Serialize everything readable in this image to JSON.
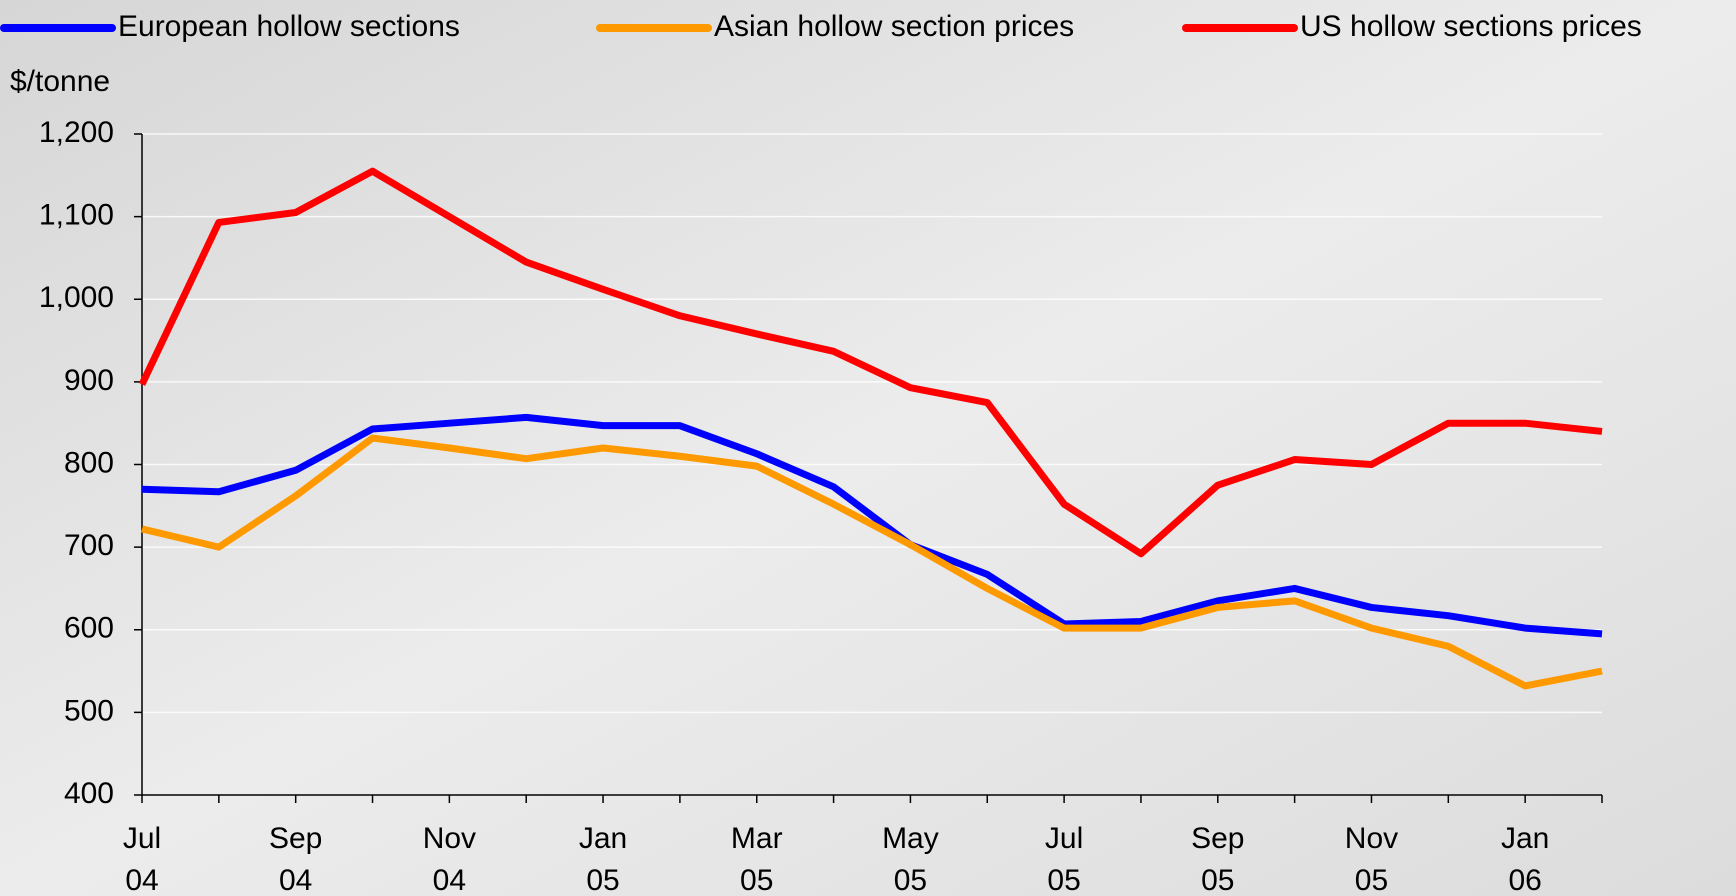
{
  "chart_data": {
    "type": "line",
    "y_label": "$/tonne",
    "categories": [
      [
        "Jul",
        "04"
      ],
      null,
      [
        "Sep",
        "04"
      ],
      null,
      [
        "Nov",
        "04"
      ],
      null,
      [
        "Jan",
        "05"
      ],
      null,
      [
        "Mar",
        "05"
      ],
      null,
      [
        "May",
        "05"
      ],
      null,
      [
        "Jul",
        "05"
      ],
      null,
      [
        "Sep",
        "05"
      ],
      null,
      [
        "Nov",
        "05"
      ],
      null,
      [
        "Jan",
        "06"
      ],
      null
    ],
    "series": [
      {
        "name": "European hollow sections",
        "color": "#0000ff",
        "values": [
          770,
          767,
          793,
          843,
          850,
          857,
          847,
          847,
          813,
          773,
          703,
          667,
          607,
          610,
          635,
          650,
          627,
          617,
          602,
          595
        ]
      },
      {
        "name": "Asian hollow section prices",
        "color": "#ff9900",
        "values": [
          722,
          700,
          762,
          832,
          820,
          807,
          820,
          810,
          798,
          752,
          703,
          650,
          602,
          602,
          627,
          635,
          602,
          580,
          532,
          550
        ]
      },
      {
        "name": "US hollow sections prices",
        "color": "#ff0000",
        "values": [
          897,
          1093,
          1105,
          1155,
          1100,
          1045,
          1012,
          980,
          958,
          937,
          893,
          875,
          752,
          692,
          775,
          806,
          800,
          850,
          850,
          840
        ]
      }
    ],
    "ylim": [
      400,
      1200
    ],
    "yticks": [
      400,
      500,
      600,
      700,
      800,
      900,
      {
        "value": 1000,
        "label": "1,000"
      },
      {
        "value": 1100,
        "label": "1,100"
      },
      {
        "value": 1200,
        "label": "1,200"
      }
    ],
    "grid": true
  }
}
